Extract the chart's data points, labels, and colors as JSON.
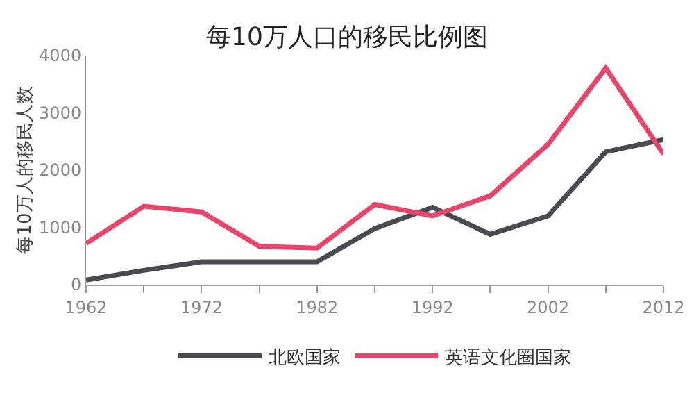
{
  "chart_data": {
    "type": "line",
    "title": "每10万人口的移民比例图",
    "ylabel": "每10万人的移民人数",
    "x": [
      1962,
      1967,
      1972,
      1977,
      1982,
      1987,
      1992,
      1997,
      2002,
      2007,
      2012
    ],
    "series": [
      {
        "name": "北欧国家",
        "color": "#4a4a50",
        "values": [
          80,
          250,
          400,
          400,
          400,
          980,
          1350,
          880,
          1200,
          2320,
          2530
        ]
      },
      {
        "name": "英语文化圈国家",
        "color": "#e8446c",
        "values": [
          720,
          1370,
          1270,
          670,
          640,
          1400,
          1200,
          1550,
          2450,
          3780,
          2280
        ]
      }
    ],
    "xlim": [
      1962,
      2012
    ],
    "xticks": [
      1962,
      {
        "value": 1967,
        "label": null
      },
      1972,
      {
        "value": 1977,
        "label": null
      },
      1982,
      {
        "value": 1987,
        "label": null
      },
      1992,
      {
        "value": 1997,
        "label": null
      },
      2002,
      {
        "value": 2007,
        "label": null
      },
      2012
    ],
    "ylim": [
      0,
      4000
    ],
    "yticks": [
      0,
      1000,
      2000,
      3000,
      4000
    ],
    "grid": false,
    "legend": "bottom",
    "marker": "none",
    "line_style": "solid"
  }
}
